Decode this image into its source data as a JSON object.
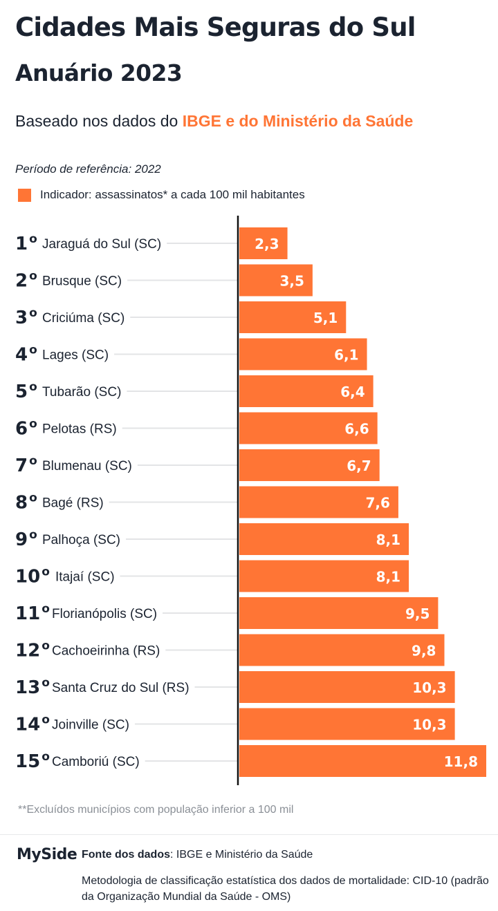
{
  "header": {
    "title": "Cidades Mais Seguras do Sul",
    "subtitle": "Anuário 2023",
    "source_prefix": "Baseado nos dados do ",
    "source_highlight": "IBGE e do Ministério da Saúde",
    "period": "Período de referência: 2022",
    "legend": "Indicador: assassinatos* a cada 100 mil habitantes"
  },
  "colors": {
    "bar": "#ff7535",
    "text": "#1b2330",
    "gridline": "#e3e4e6",
    "axis": "#111111",
    "footnote": "#8a8f96"
  },
  "chart_data": {
    "type": "bar",
    "orientation": "horizontal",
    "categories": [
      "Jaraguá do Sul (SC)",
      "Brusque (SC)",
      "Criciúma (SC)",
      "Lages (SC)",
      "Tubarão (SC)",
      "Pelotas (RS)",
      "Blumenau (SC)",
      "Bagé (RS)",
      "Palhoça (SC)",
      "Itajaí (SC)",
      "Florianópolis (SC)",
      "Cachoeirinha (RS)",
      "Santa Cruz do Sul (RS)",
      "Joinville (SC)",
      "Camboriú (SC)"
    ],
    "ranks": [
      "1",
      "2",
      "3",
      "4",
      "5",
      "6",
      "7",
      "8",
      "9",
      "10",
      "11",
      "12",
      "13",
      "14",
      "15"
    ],
    "rank_suffix": "o",
    "values": [
      2.3,
      3.5,
      5.1,
      6.1,
      6.4,
      6.6,
      6.7,
      7.6,
      8.1,
      8.1,
      9.5,
      9.8,
      10.3,
      10.3,
      11.8
    ],
    "value_labels": [
      "2,3",
      "3,5",
      "5,1",
      "6,1",
      "6,4",
      "6,6",
      "6,7",
      "7,6",
      "8,1",
      "8,1",
      "9,5",
      "9,8",
      "10,3",
      "10,3",
      "11,8"
    ],
    "xlim": [
      0,
      11.8
    ],
    "grid": false,
    "legend_position": "top-left"
  },
  "footnote": "**Excluídos municípios com população inferior a 100 mil",
  "footer": {
    "brand": "MySide",
    "source_label": "Fonte dos dados",
    "source_text": ": IBGE e Ministério da Saúde",
    "methodology": "Metodologia de classificação estatística dos dados de mortalidade: CID-10 (padrão da Organização Mundial da Saúde - OMS)"
  }
}
